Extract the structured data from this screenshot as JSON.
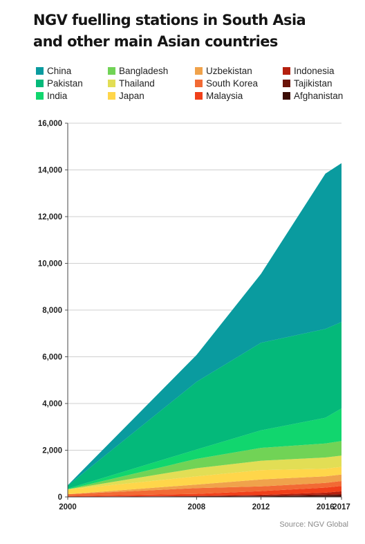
{
  "title": {
    "line1": "NGV fuelling stations in South Asia",
    "line2": "and other main Asian countries"
  },
  "source": "Source: NGV Global",
  "chart_data": {
    "type": "area",
    "stacked": true,
    "title": "NGV fuelling stations in South Asia and other main Asian countries",
    "xlabel": "",
    "ylabel": "",
    "x": [
      "2000",
      "2008",
      "2012",
      "2016",
      "2017"
    ],
    "ylim": [
      0,
      16000
    ],
    "yticks": [
      0,
      2000,
      4000,
      6000,
      8000,
      10000,
      12000,
      14000,
      16000
    ],
    "ytick_labels": [
      "0",
      "2,000",
      "4,000",
      "6,000",
      "8,000",
      "10,000",
      "12,000",
      "14,000",
      "16,000"
    ],
    "grid": true,
    "legend_position": "top",
    "series": [
      {
        "name": "Afghanistan",
        "color": "#3b0d06",
        "values": [
          0,
          10,
          20,
          50,
          60
        ]
      },
      {
        "name": "Tajikistan",
        "color": "#6b1409",
        "values": [
          0,
          20,
          40,
          50,
          60
        ]
      },
      {
        "name": "Indonesia",
        "color": "#b5200e",
        "values": [
          5,
          20,
          30,
          80,
          120
        ]
      },
      {
        "name": "Malaysia",
        "color": "#f0401a",
        "values": [
          30,
          80,
          160,
          220,
          230
        ]
      },
      {
        "name": "South Korea",
        "color": "#f26a34",
        "values": [
          80,
          250,
          200,
          200,
          210
        ]
      },
      {
        "name": "Uzbekistan",
        "color": "#f0a24b",
        "values": [
          0,
          150,
          300,
          280,
          280
        ]
      },
      {
        "name": "Japan",
        "color": "#ffd64a",
        "values": [
          200,
          350,
          400,
          330,
          330
        ]
      },
      {
        "name": "Thailand",
        "color": "#e2de55",
        "values": [
          10,
          350,
          400,
          480,
          480
        ]
      },
      {
        "name": "Bangladesh",
        "color": "#71d356",
        "values": [
          0,
          400,
          550,
          600,
          620
        ]
      },
      {
        "name": "India",
        "color": "#11d66e",
        "values": [
          30,
          400,
          750,
          1100,
          1400
        ]
      },
      {
        "name": "Pakistan",
        "color": "#04b97a",
        "values": [
          130,
          2900,
          3750,
          3800,
          3700
        ]
      },
      {
        "name": "China",
        "color": "#0a9b9f",
        "values": [
          15,
          1150,
          2950,
          6650,
          6800
        ]
      }
    ]
  }
}
